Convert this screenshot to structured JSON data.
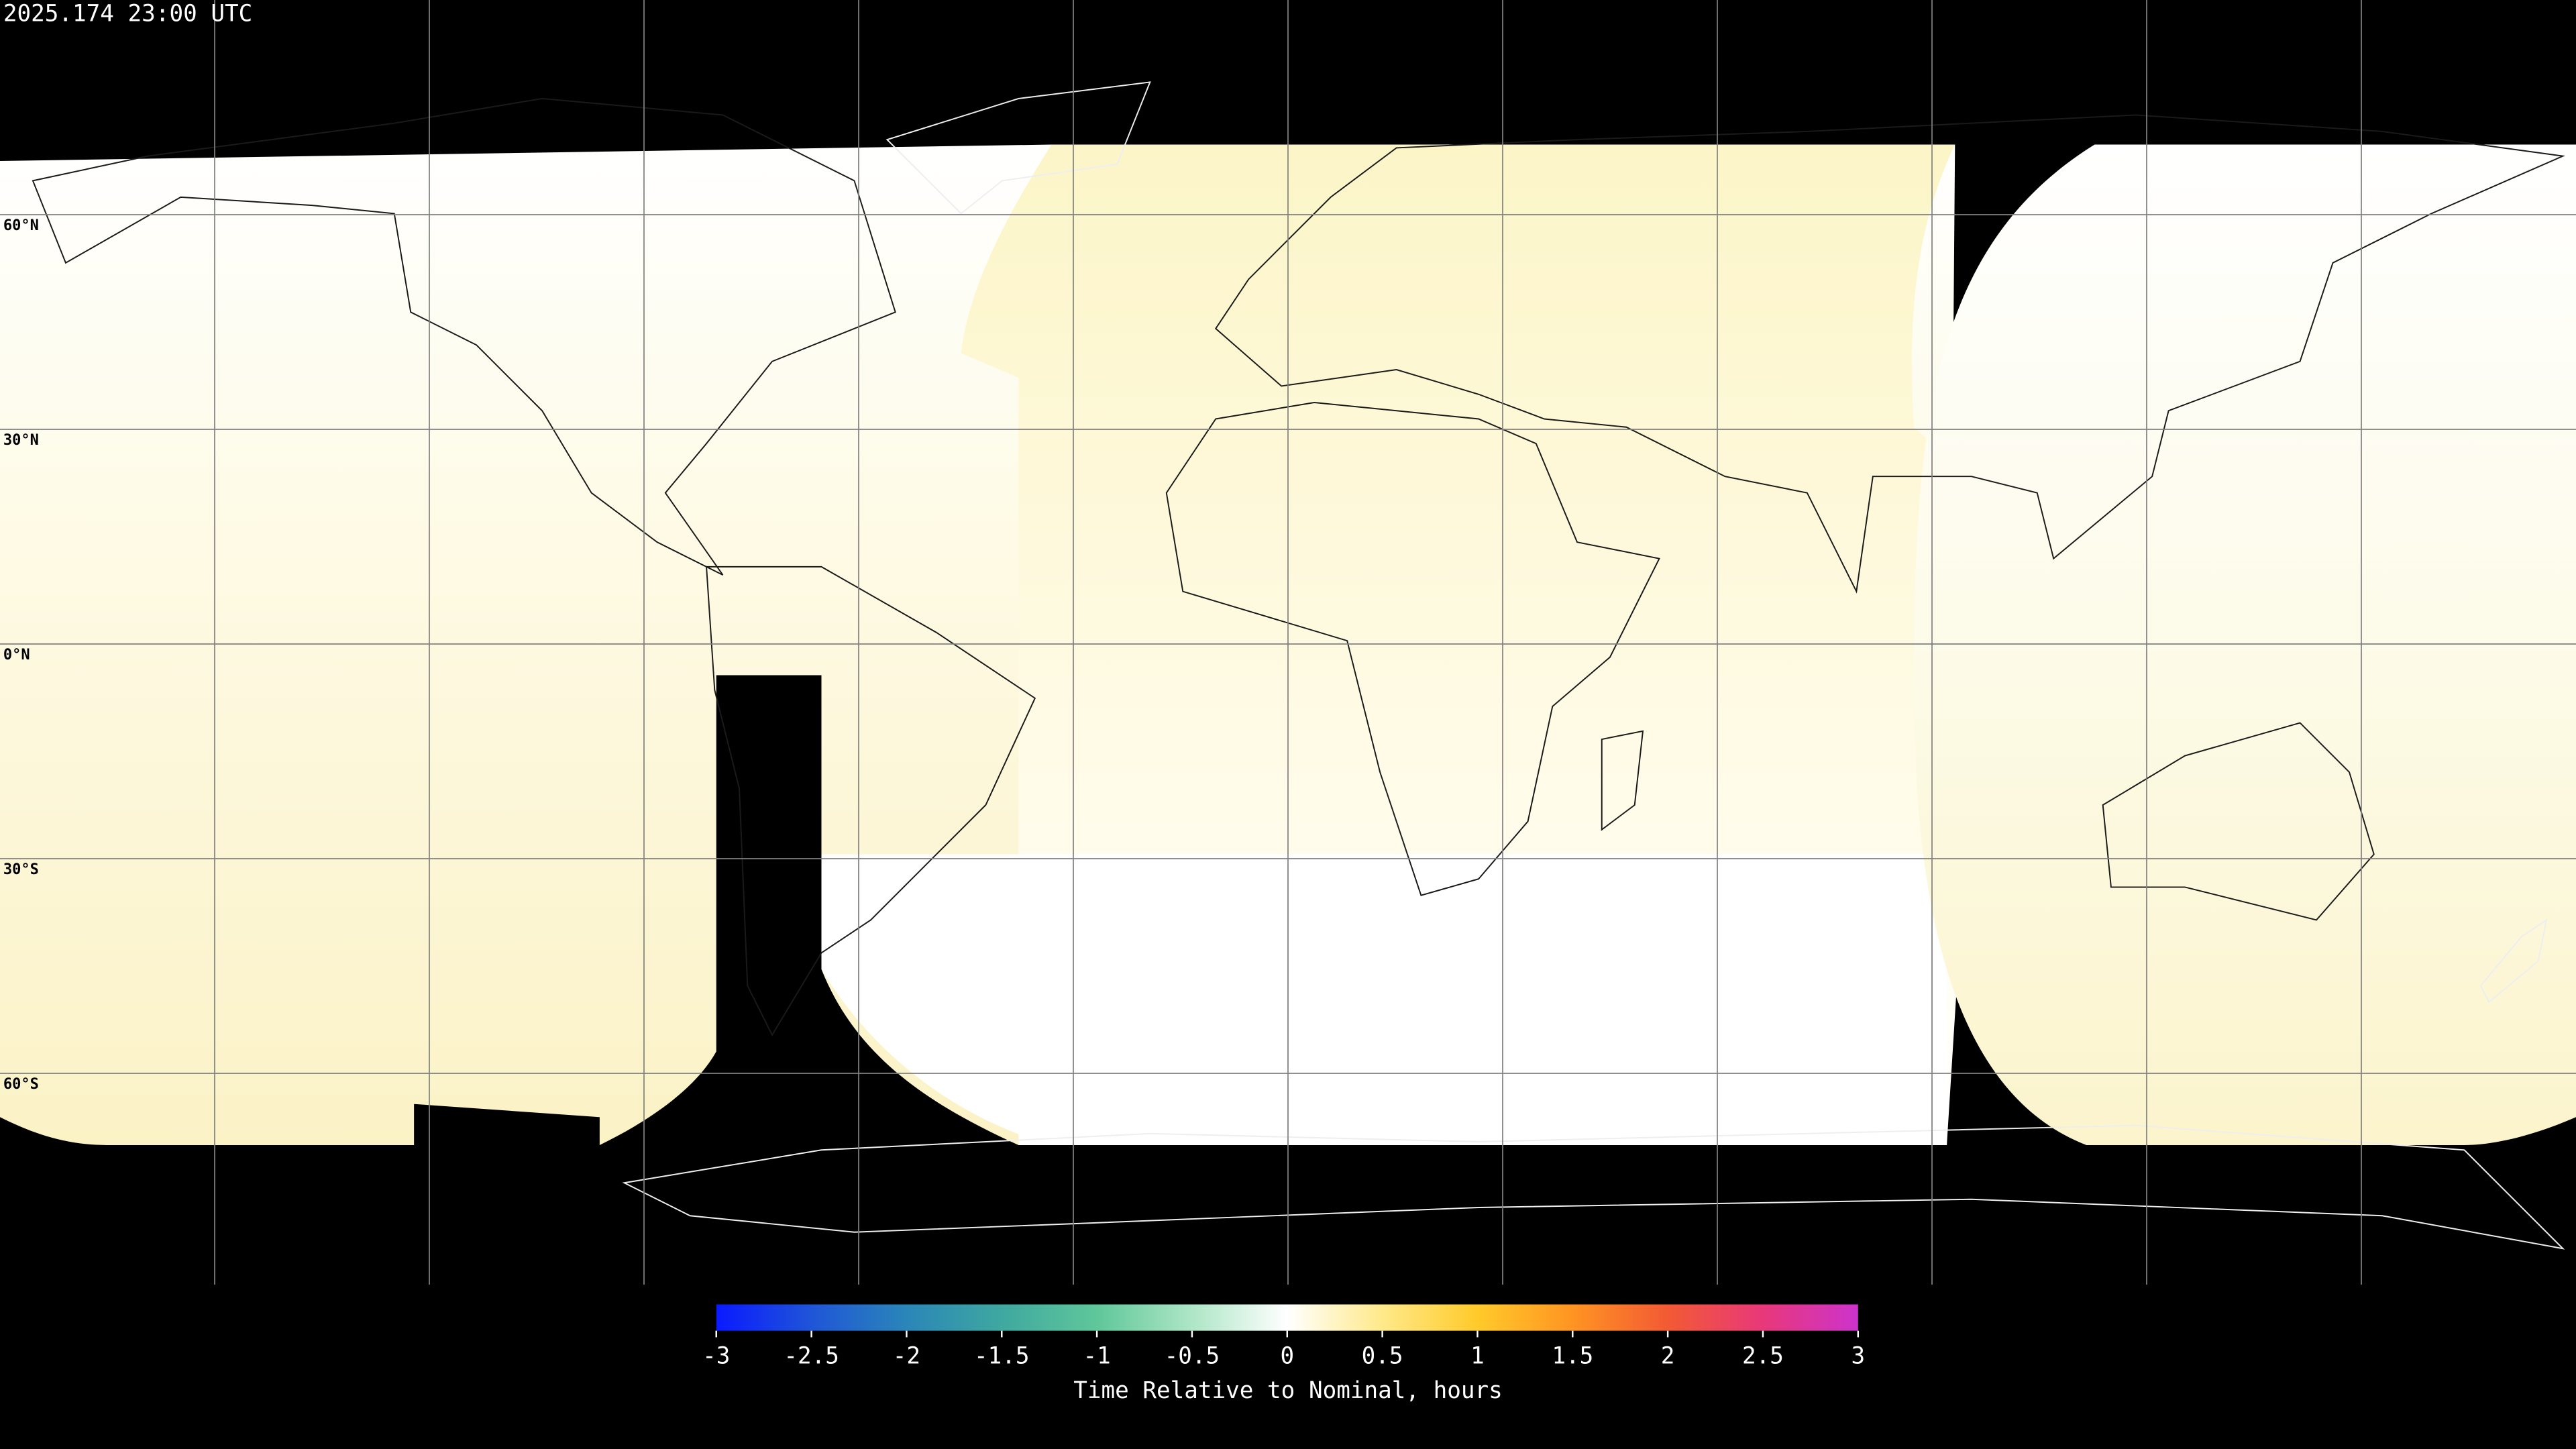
{
  "header": {
    "timestamp": "2025.174 23:00 UTC"
  },
  "map": {
    "lat_labels": [
      "60°N",
      "30°N",
      "0°N",
      "30°S",
      "60°S"
    ]
  },
  "colorbar": {
    "label": "Time Relative to Nominal, hours",
    "range": [
      -3,
      3
    ],
    "ticks": [
      -3,
      -2.5,
      -2,
      -1.5,
      -1,
      -0.5,
      0,
      0.5,
      1,
      1.5,
      2,
      2.5,
      3
    ],
    "colors": [
      "#0a1aff",
      "#1f55d8",
      "#2a86b8",
      "#3fa8a0",
      "#5fc79a",
      "#aee6c6",
      "#ffffff",
      "#ffe98a",
      "#ffca2a",
      "#ff9422",
      "#f25a34",
      "#e8387a",
      "#cc33cc"
    ]
  }
}
